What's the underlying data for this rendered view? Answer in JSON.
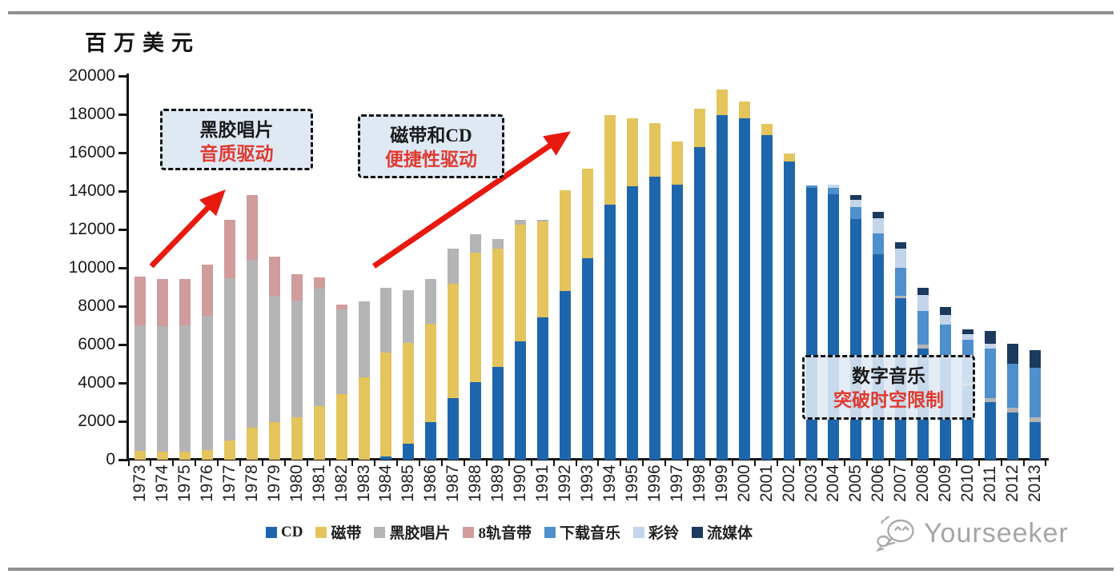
{
  "chart": {
    "unit_label": "百万美元",
    "watermark": "Yourseeker",
    "annotations": [
      {
        "line1": "黑胶唱片",
        "line2": "音质驱动"
      },
      {
        "line1": "磁带和CD",
        "line2": "便捷性驱动"
      },
      {
        "line1": "数字音乐",
        "line2": "突破时空限制"
      }
    ],
    "colors": {
      "arrow_red": "#e8190f",
      "annotation_text_red": "#e03a30",
      "annotation_bg": "#dfe9f4",
      "axis": "#141414",
      "watermark_gray": "#a5a5a5",
      "divider_gray": "#8f8f8f"
    }
  },
  "chart_data": {
    "type": "bar",
    "stacked": true,
    "title": "",
    "xlabel": "",
    "ylabel": "百万美元",
    "ylim": [
      0,
      20000
    ],
    "ytick_step": 2000,
    "y_tick_labels": [
      "0",
      "2000",
      "4000",
      "6000",
      "8000",
      "10000",
      "12000",
      "14000",
      "16000",
      "18000",
      "20000"
    ],
    "grid": false,
    "legend_position": "bottom",
    "categories": [
      "1973",
      "1974",
      "1975",
      "1976",
      "1977",
      "1978",
      "1979",
      "1980",
      "1981",
      "1982",
      "1983",
      "1984",
      "1985",
      "1986",
      "1987",
      "1988",
      "1989",
      "1990",
      "1991",
      "1992",
      "1993",
      "1994",
      "1995",
      "1996",
      "1997",
      "1998",
      "1999",
      "2000",
      "2001",
      "2002",
      "2003",
      "2004",
      "2005",
      "2006",
      "2007",
      "2008",
      "2009",
      "2010",
      "2011",
      "2012",
      "2013"
    ],
    "series": [
      {
        "name": "CD",
        "color": "#1e66ac",
        "values": [
          0,
          0,
          0,
          0,
          0,
          0,
          0,
          0,
          0,
          0,
          0,
          150,
          850,
          1950,
          3200,
          4050,
          4850,
          6150,
          7400,
          8800,
          10500,
          13300,
          14250,
          14750,
          14350,
          16300,
          17950,
          17800,
          16900,
          15550,
          14150,
          13850,
          12550,
          10700,
          8400,
          5800,
          5300,
          3850,
          3000,
          2450,
          1950
        ]
      },
      {
        "name": "磁带",
        "color": "#e4c45c",
        "values": [
          450,
          400,
          400,
          500,
          1000,
          1650,
          1950,
          2200,
          2800,
          3400,
          4300,
          5450,
          5250,
          5150,
          5950,
          6750,
          6150,
          6100,
          5000,
          5250,
          4650,
          4650,
          3550,
          2800,
          2250,
          2000,
          1350,
          850,
          600,
          400,
          0,
          0,
          0,
          0,
          0,
          0,
          0,
          0,
          0,
          0,
          0
        ]
      },
      {
        "name": "黑胶唱片",
        "color": "#b4b4b6",
        "values": [
          6550,
          6550,
          6600,
          7000,
          8450,
          8750,
          6600,
          6100,
          6100,
          4450,
          3950,
          3350,
          2750,
          2300,
          1850,
          950,
          500,
          250,
          100,
          0,
          0,
          0,
          0,
          0,
          0,
          0,
          0,
          0,
          0,
          0,
          0,
          0,
          0,
          0,
          150,
          200,
          150,
          150,
          200,
          250,
          250
        ]
      },
      {
        "name": "8轨音带",
        "color": "#d09c9c",
        "values": [
          2550,
          2450,
          2400,
          2650,
          3050,
          3400,
          2050,
          1350,
          600,
          250,
          0,
          0,
          0,
          0,
          0,
          0,
          0,
          0,
          0,
          0,
          0,
          0,
          0,
          0,
          0,
          0,
          0,
          0,
          0,
          0,
          0,
          0,
          0,
          0,
          0,
          0,
          0,
          0,
          0,
          0,
          0
        ]
      },
      {
        "name": "下载音乐",
        "color": "#4e8fcc",
        "values": [
          0,
          0,
          0,
          0,
          0,
          0,
          0,
          0,
          0,
          0,
          0,
          0,
          0,
          0,
          0,
          0,
          0,
          0,
          0,
          0,
          0,
          0,
          0,
          0,
          0,
          0,
          0,
          0,
          0,
          0,
          150,
          300,
          600,
          1100,
          1450,
          1750,
          1600,
          2250,
          2600,
          2300,
          2600
        ]
      },
      {
        "name": "彩铃",
        "color": "#c3d5eb",
        "values": [
          0,
          0,
          0,
          0,
          0,
          0,
          0,
          0,
          0,
          0,
          0,
          0,
          0,
          0,
          0,
          0,
          0,
          0,
          0,
          0,
          0,
          0,
          0,
          0,
          0,
          0,
          0,
          0,
          0,
          0,
          0,
          200,
          400,
          800,
          1000,
          850,
          500,
          300,
          250,
          0,
          0
        ]
      },
      {
        "name": "流媒体",
        "color": "#1b3a5e",
        "values": [
          0,
          0,
          0,
          0,
          0,
          0,
          0,
          0,
          0,
          0,
          0,
          0,
          0,
          0,
          0,
          0,
          0,
          0,
          0,
          0,
          0,
          0,
          0,
          0,
          0,
          0,
          0,
          0,
          0,
          0,
          0,
          0,
          250,
          300,
          320,
          350,
          400,
          250,
          650,
          1050,
          900
        ]
      }
    ]
  }
}
